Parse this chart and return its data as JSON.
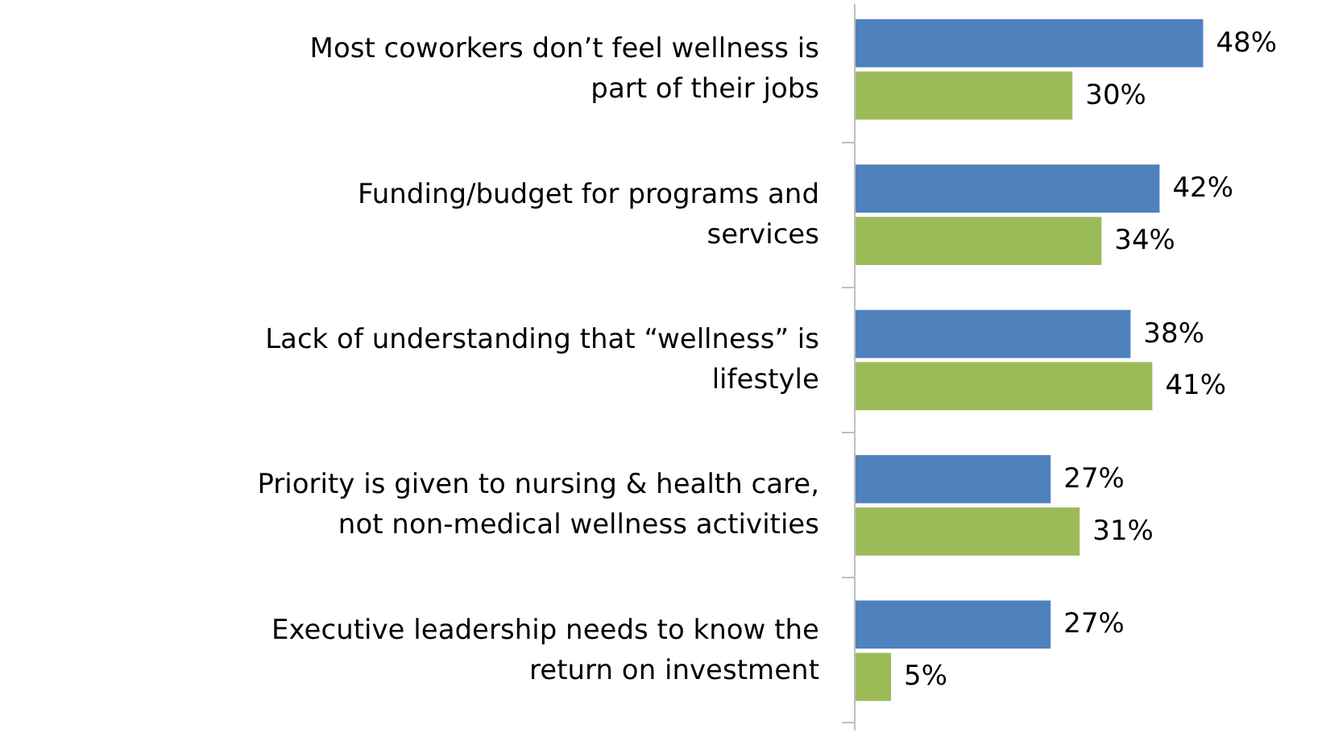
{
  "chart_data": {
    "type": "bar",
    "orientation": "horizontal",
    "categories": [
      "Most coworkers don’t feel wellness is\npart of their jobs",
      "Funding/budget for programs and\nservices",
      "Lack of understanding that “wellness” is\nlifestyle",
      "Priority is given to nursing & health care,\nnot non-medical wellness activities",
      "Executive leadership needs to know the\nreturn on investment"
    ],
    "series": [
      {
        "color": "#4f81bd",
        "values": [
          48,
          42,
          38,
          27,
          27
        ],
        "value_labels": [
          "48%",
          "42%",
          "38%",
          "27%",
          "27%"
        ]
      },
      {
        "color": "#9bbb59",
        "values": [
          30,
          34,
          41,
          31,
          5
        ],
        "value_labels": [
          "30%",
          "34%",
          "41%",
          "31%",
          "5%"
        ]
      }
    ],
    "grid": false
  }
}
